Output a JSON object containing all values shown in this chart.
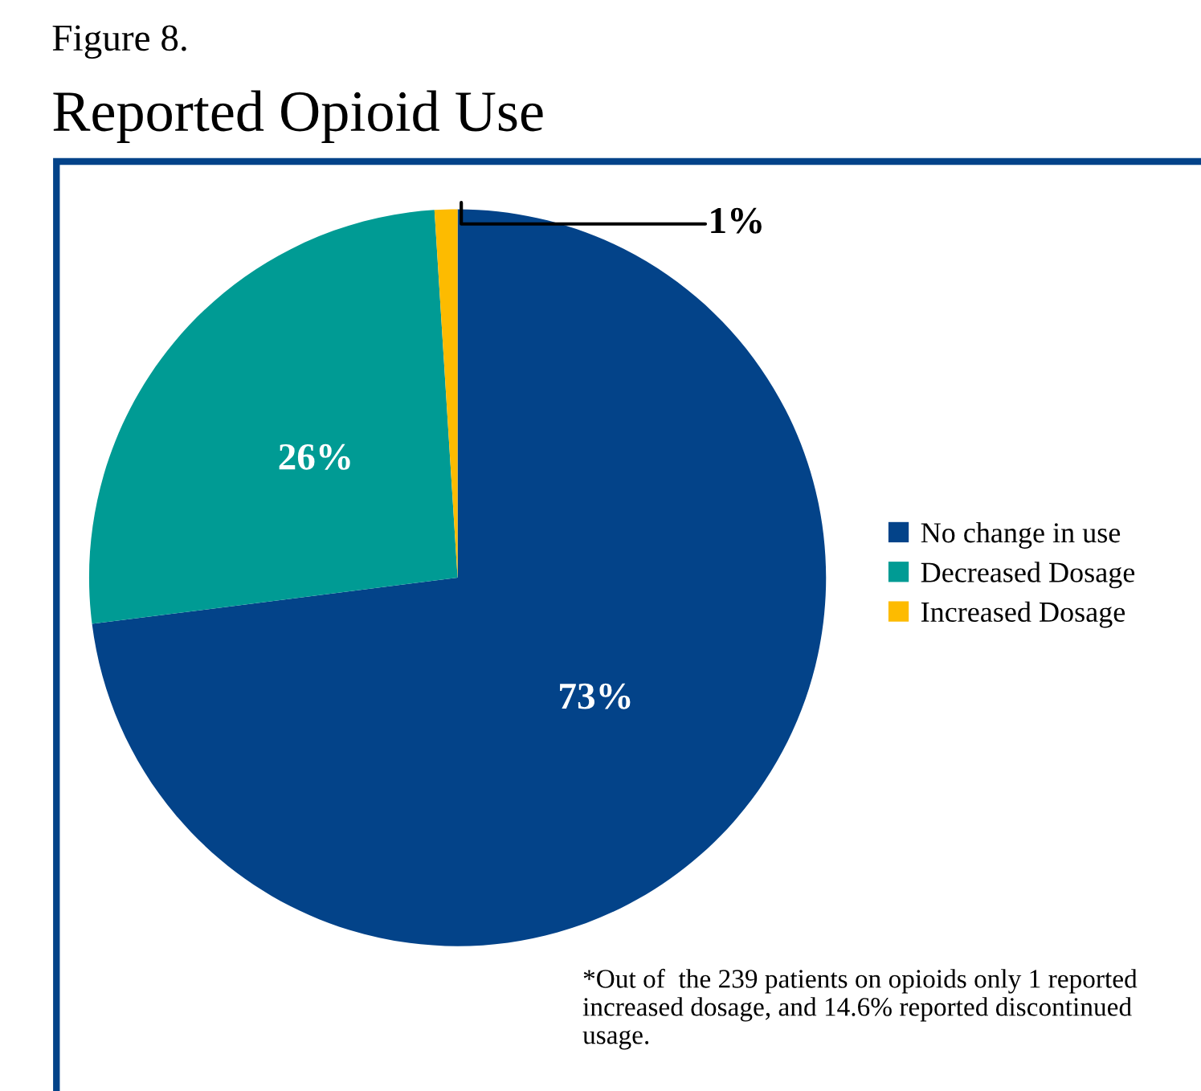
{
  "chart_data": {
    "type": "pie",
    "title": "Reported Opioid Use",
    "categories": [
      "No change in use",
      "Decreased Dosage",
      "Increased Dosage"
    ],
    "values": [
      73,
      26,
      1
    ],
    "colors": [
      "#034389",
      "#009b94",
      "#fdbb00"
    ],
    "value_labels": [
      "73%",
      "26%",
      "1%"
    ],
    "legend": "right",
    "annotations": [
      "Figure 8.",
      "*Out of  the 239 patients on opioids only 1 reported increased dosage, and 14.6% reported discontinued usage."
    ]
  }
}
